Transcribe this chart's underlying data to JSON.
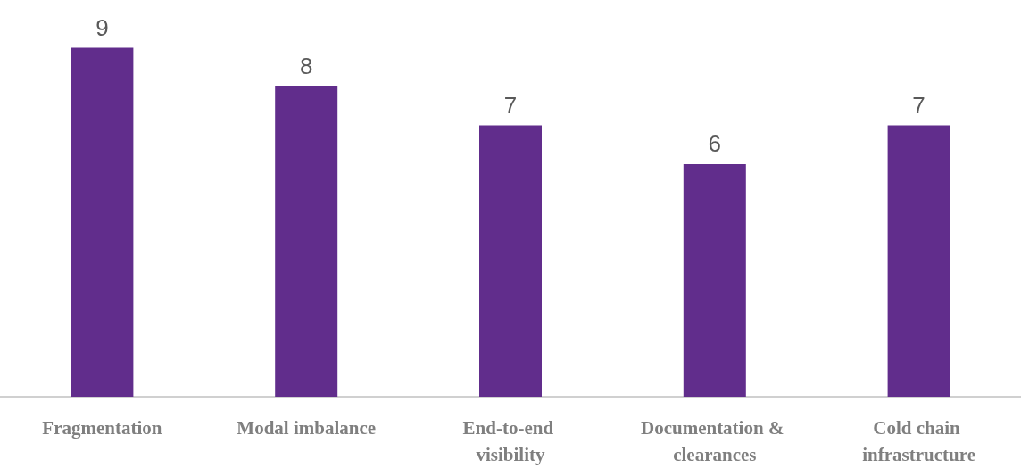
{
  "chart_data": {
    "type": "bar",
    "categories": [
      "Fragmentation",
      "Modal imbalance",
      "End-to-end visibility",
      "Documentation & clearances",
      "Cold chain infrastructure"
    ],
    "values": [
      9,
      8,
      7,
      6,
      7
    ],
    "color": "#612d8c",
    "data_labels": true,
    "tick_labels": "x"
  }
}
